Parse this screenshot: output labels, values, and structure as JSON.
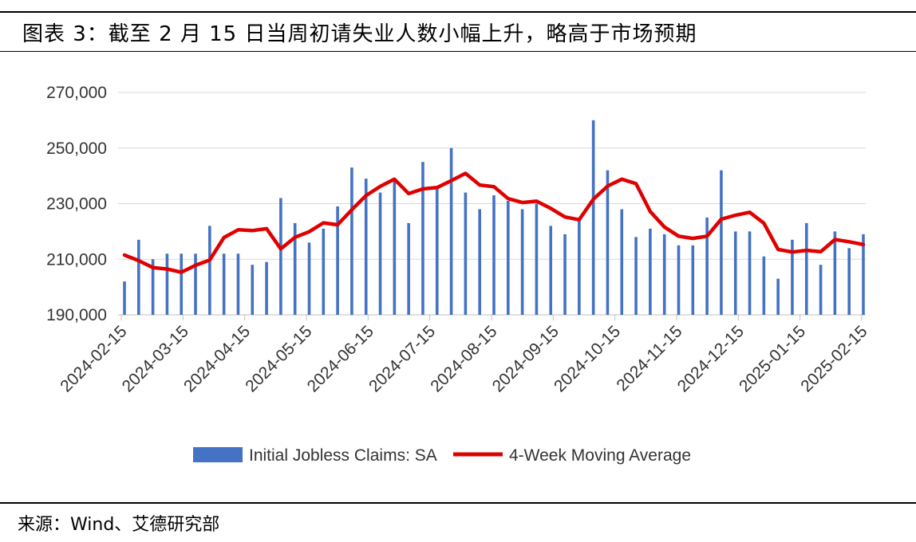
{
  "header": {
    "title": "图表 3：截至 2 月 15 日当周初请失业人数小幅上升，略高于市场预期"
  },
  "footer": {
    "source": "来源：Wind、艾德研究部"
  },
  "chart_data": {
    "type": "bar",
    "ylim": [
      190000,
      270000
    ],
    "yticks": [
      190000,
      210000,
      230000,
      250000,
      270000
    ],
    "ytick_labels": [
      "190,000",
      "210,000",
      "230,000",
      "250,000",
      "270,000"
    ],
    "xtick_labels": [
      "2024-02-15",
      "2024-03-15",
      "2024-04-15",
      "2024-05-15",
      "2024-06-15",
      "2024-07-15",
      "2024-08-15",
      "2024-09-15",
      "2024-10-15",
      "2024-11-15",
      "2024-12-15",
      "2025-01-15",
      "2025-02-15"
    ],
    "grid": true,
    "legend_position": "bottom",
    "colors": {
      "bars": "#4472C4",
      "line": "#E00000"
    },
    "series": [
      {
        "name": "Initial Jobless Claims: SA",
        "type": "bar",
        "values": [
          202000,
          217000,
          210000,
          212000,
          212000,
          212000,
          222000,
          212000,
          212000,
          208000,
          209000,
          232000,
          223000,
          216000,
          221000,
          229000,
          243000,
          239000,
          234000,
          238000,
          223000,
          245000,
          236000,
          250000,
          234000,
          228000,
          233000,
          231000,
          228000,
          230000,
          222000,
          219000,
          224000,
          260000,
          242000,
          228000,
          218000,
          221000,
          219000,
          215000,
          215000,
          225000,
          242000,
          220000,
          220000,
          211000,
          203000,
          217000,
          223000,
          208000,
          220000,
          214000,
          219000
        ]
      },
      {
        "name": "4-Week Moving Average",
        "type": "line",
        "values": [
          211500,
          209500,
          207000,
          206500,
          205300,
          207800,
          209700,
          217800,
          220600,
          220300,
          221000,
          213700,
          217900,
          219900,
          223100,
          222400,
          227800,
          232900,
          236200,
          238800,
          233600,
          235300,
          235800,
          238300,
          240900,
          236700,
          236100,
          231800,
          230400,
          230900,
          228300,
          225200,
          224200,
          231600,
          236300,
          238800,
          237200,
          227200,
          221600,
          218300,
          217500,
          218300,
          224400,
          225800,
          226900,
          223000,
          213500,
          212600,
          213200,
          212700,
          217100,
          216300,
          215300
        ]
      }
    ]
  }
}
